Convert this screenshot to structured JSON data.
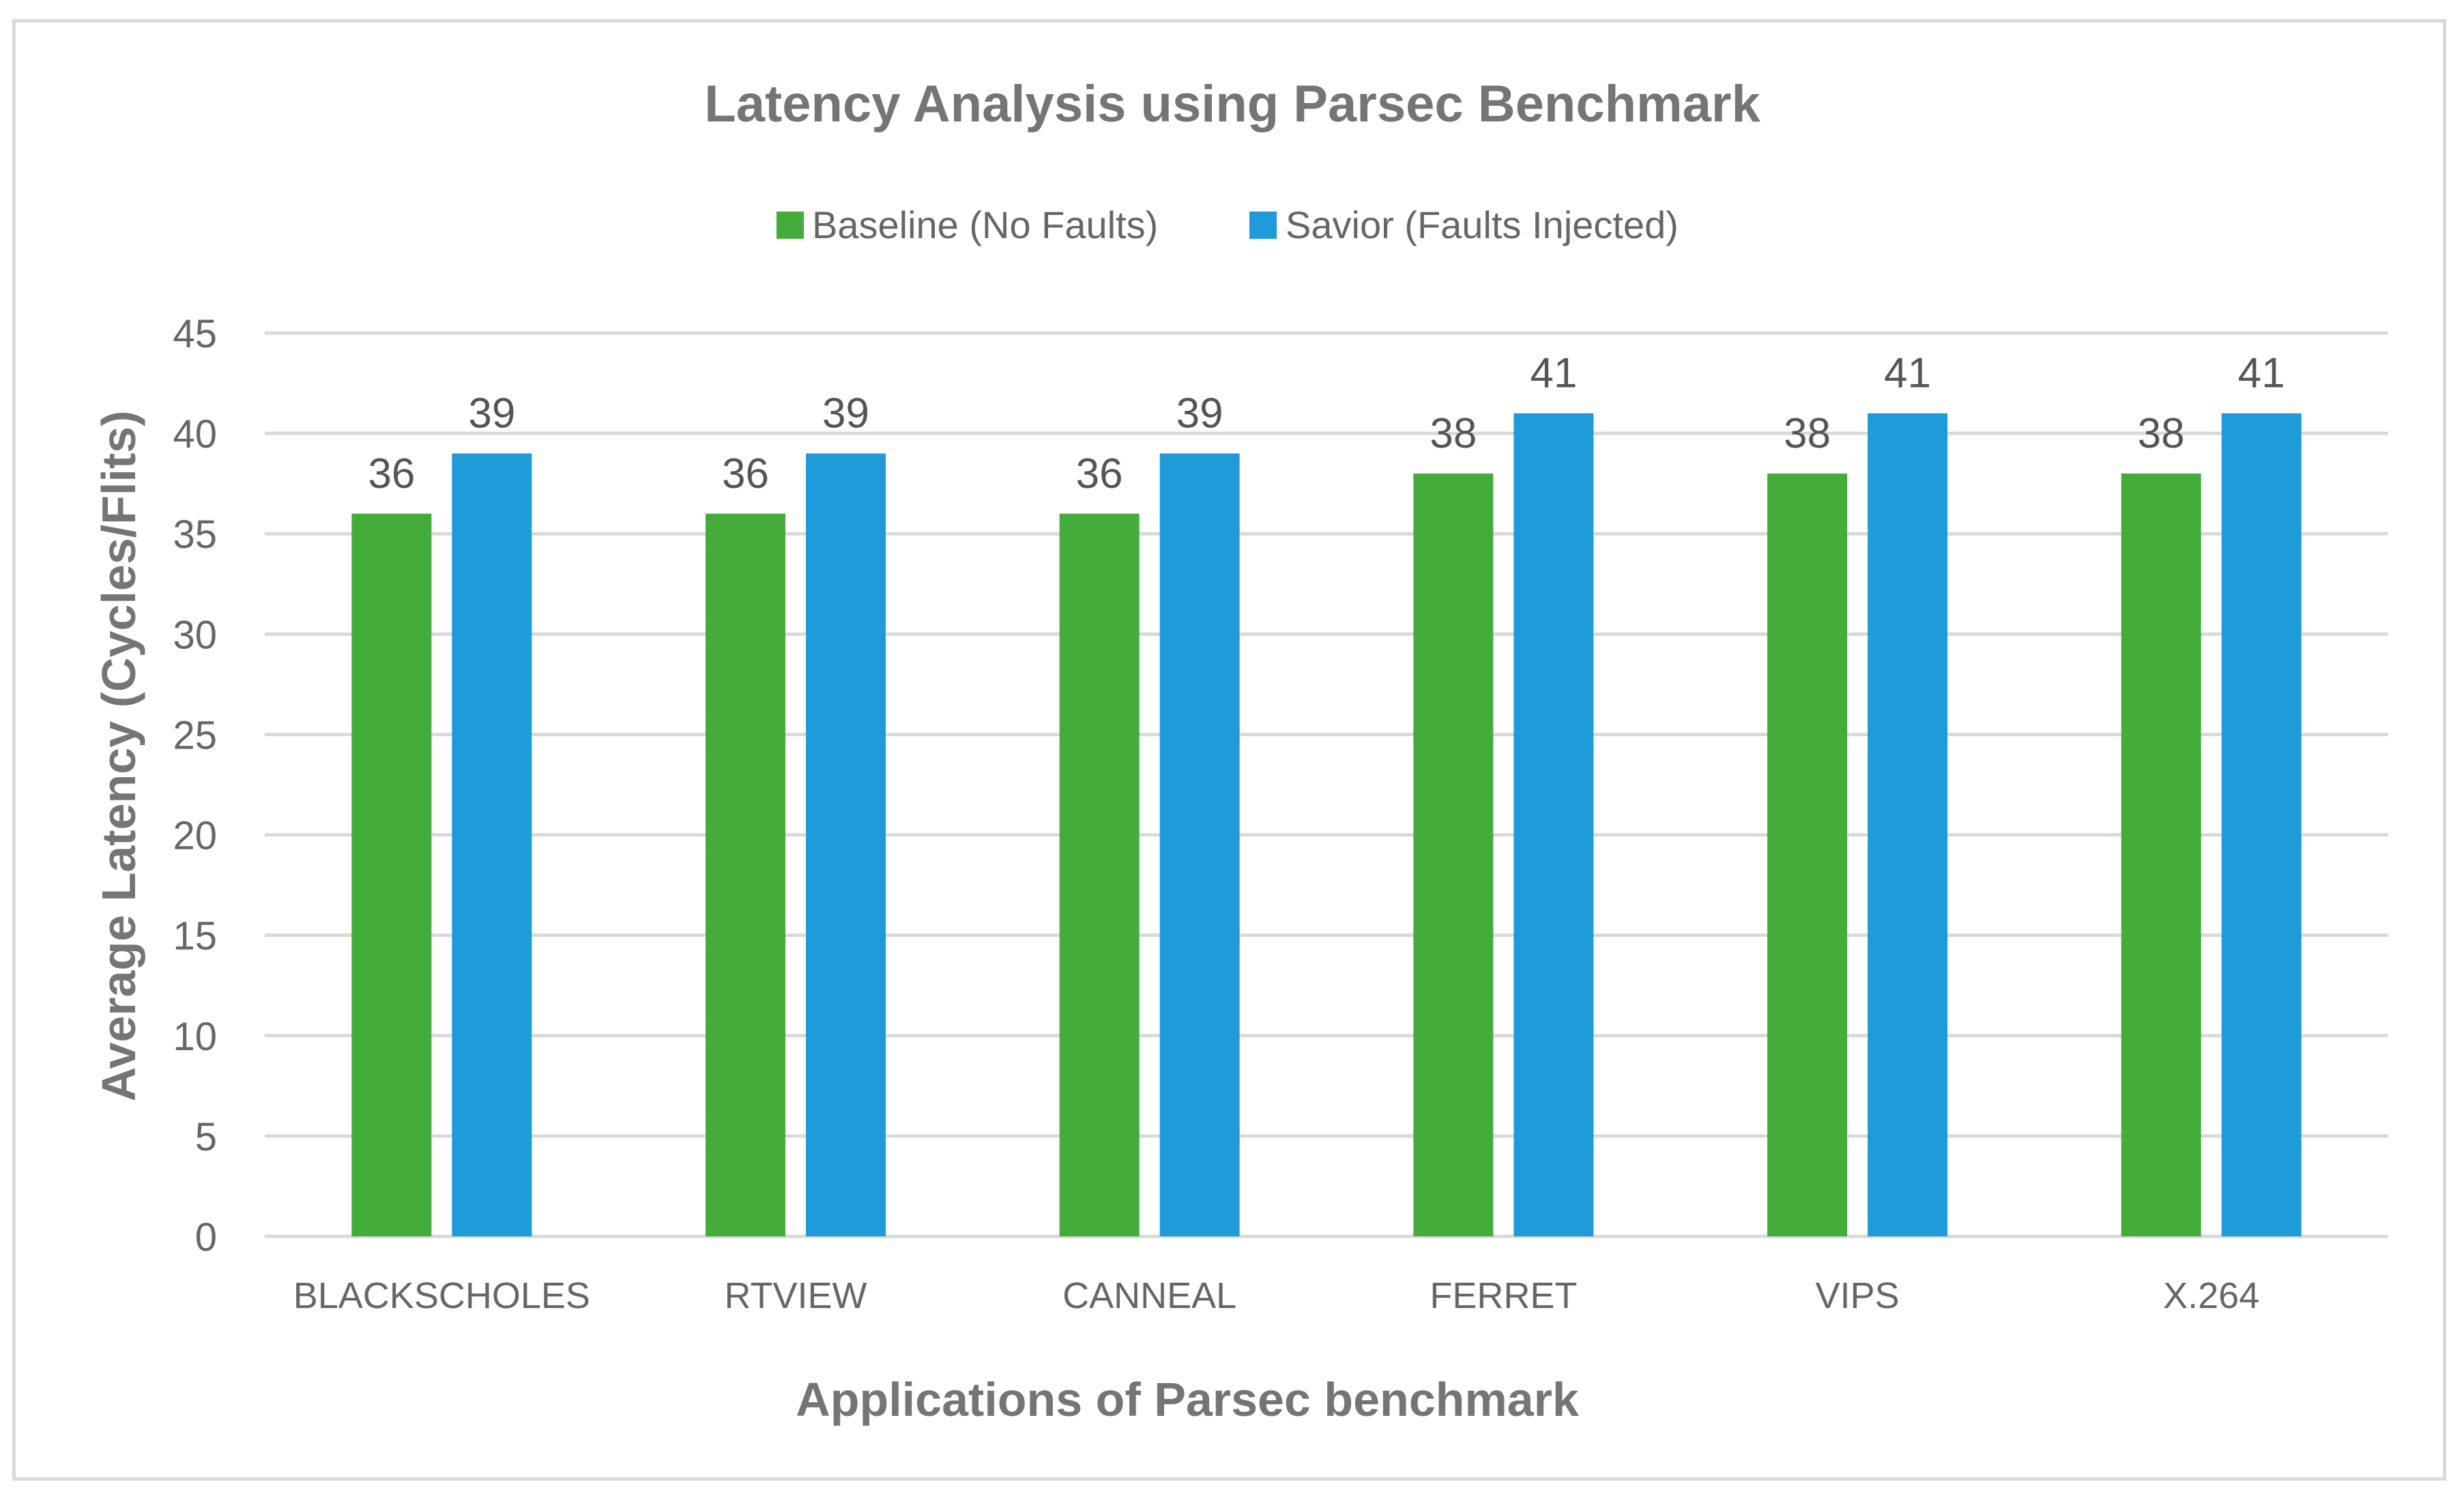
{
  "chart_data": {
    "type": "bar",
    "title": "Latency Analysis using Parsec Benchmark",
    "xlabel": "Applications of Parsec benchmark",
    "ylabel": "Average Latency (Cycles/Flits)",
    "categories": [
      "BLACKSCHOLES",
      "RTVIEW",
      "CANNEAL",
      "FERRET",
      "VIPS",
      "X.264"
    ],
    "series": [
      {
        "name": "Baseline (No Faults)",
        "values": [
          36,
          36,
          36,
          38,
          38,
          38
        ],
        "color": "#43ac3b"
      },
      {
        "name": "Savior (Faults Injected)",
        "values": [
          39,
          39,
          39,
          41,
          41,
          41
        ],
        "color": "#1e9bd8"
      }
    ],
    "ylim": [
      0,
      45
    ],
    "yticks": [
      0,
      5,
      10,
      15,
      20,
      25,
      30,
      35,
      40,
      45
    ],
    "grid": true,
    "legend_position": "top",
    "gridline_color": "#d9d9d9"
  }
}
